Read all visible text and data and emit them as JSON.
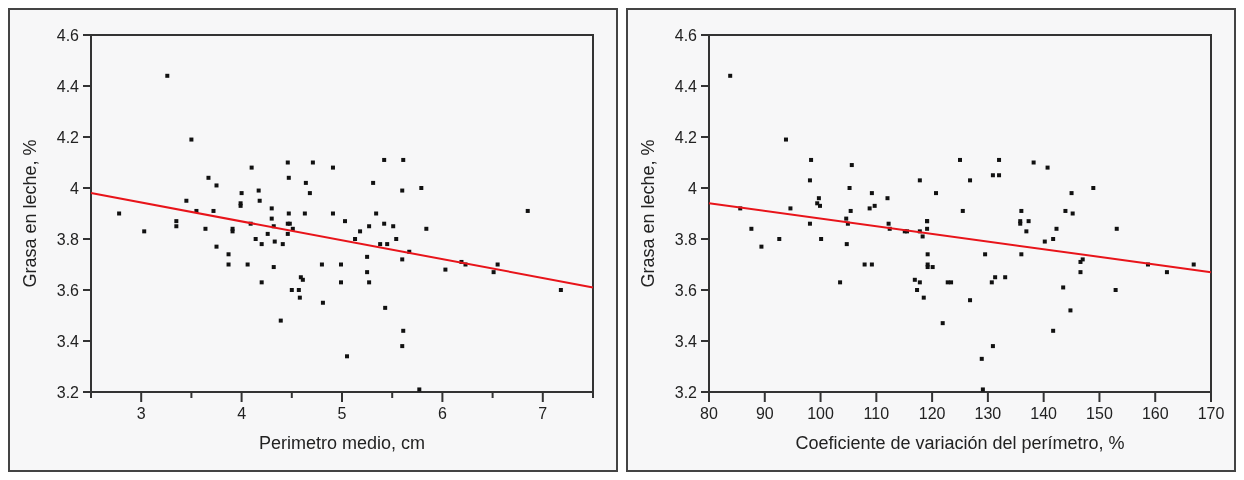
{
  "chart_data": [
    {
      "type": "scatter",
      "xlabel": "Perimetro medio, cm",
      "ylabel": "Grasa en leche, %",
      "xlim": [
        2.5,
        7.5
      ],
      "ylim": [
        3.2,
        4.6
      ],
      "xticks": [
        {
          "value": 2.5,
          "label": null
        },
        3,
        {
          "value": 3.5,
          "label": null
        },
        4,
        {
          "value": 4.5,
          "label": null
        },
        5,
        {
          "value": 5.5,
          "label": null
        },
        6,
        {
          "value": 6.5,
          "label": null
        },
        7,
        {
          "value": 7.5,
          "label": null
        }
      ],
      "yticks": [
        3.2,
        3.4,
        3.6,
        3.8,
        4,
        4.2,
        4.4,
        4.6
      ],
      "grid": false,
      "marker": "square",
      "series": [
        {
          "color": "#111111",
          "x": [
            2.78,
            3.03,
            3.26,
            3.5,
            3.45,
            3.35,
            3.35,
            3.55,
            3.67,
            3.75,
            3.64,
            3.72,
            3.75,
            3.87,
            3.87,
            3.91,
            3.91,
            3.99,
            4.0,
            3.99,
            4.06,
            4.09,
            4.1,
            4.17,
            4.18,
            4.14,
            4.2,
            4.2,
            4.26,
            4.3,
            4.3,
            4.32,
            4.33,
            4.32,
            4.39,
            4.41,
            4.5,
            4.46,
            4.46,
            4.47,
            4.46,
            4.47,
            4.51,
            4.48,
            4.57,
            4.59,
            4.61,
            4.58,
            4.64,
            4.68,
            4.63,
            4.71,
            4.81,
            4.8,
            4.91,
            4.91,
            4.99,
            4.99,
            5.03,
            5.05,
            5.13,
            5.18,
            5.25,
            5.25,
            5.27,
            5.27,
            5.31,
            5.34,
            5.38,
            5.42,
            5.43,
            5.42,
            5.45,
            5.51,
            5.54,
            5.6,
            5.61,
            5.6,
            5.61,
            5.6,
            5.67,
            5.77,
            5.79,
            5.84,
            6.03,
            6.19,
            6.23,
            6.51,
            6.55,
            6.85,
            7.18
          ],
          "values": [
            3.9,
            3.83,
            4.44,
            4.19,
            3.95,
            3.85,
            3.87,
            3.91,
            4.04,
            4.01,
            3.84,
            3.91,
            3.77,
            3.74,
            3.7,
            3.84,
            3.83,
            3.93,
            3.98,
            3.94,
            3.7,
            3.86,
            4.08,
            3.99,
            3.95,
            3.8,
            3.78,
            3.63,
            3.82,
            3.88,
            3.92,
            3.85,
            3.79,
            3.69,
            3.48,
            3.78,
            3.6,
            3.82,
            3.86,
            3.9,
            4.1,
            4.04,
            3.84,
            3.86,
            3.6,
            3.65,
            3.64,
            3.57,
            4.02,
            3.98,
            3.9,
            4.1,
            3.55,
            3.7,
            3.9,
            4.08,
            3.7,
            3.63,
            3.87,
            3.34,
            3.8,
            3.83,
            3.67,
            3.73,
            3.63,
            3.85,
            4.02,
            3.9,
            3.78,
            3.86,
            3.53,
            4.11,
            3.78,
            3.85,
            3.8,
            3.99,
            4.11,
            3.72,
            3.44,
            3.38,
            3.75,
            3.21,
            4.0,
            3.84,
            3.68,
            3.71,
            3.7,
            3.67,
            3.7,
            3.91,
            3.6
          ]
        },
        {
          "type": "line",
          "color": "#e8141a",
          "marker": "none",
          "line_style": "solid",
          "x": [
            2.5,
            7.5
          ],
          "values": [
            3.98,
            3.61
          ]
        }
      ]
    },
    {
      "type": "scatter",
      "xlabel": "Coeficiente de variación del perímetro, %",
      "ylabel": "Grasa en leche, %",
      "xlim": [
        80,
        170
      ],
      "ylim": [
        3.2,
        4.6
      ],
      "xticks": [
        80,
        90,
        100,
        110,
        120,
        130,
        140,
        150,
        160,
        170
      ],
      "yticks": [
        3.2,
        3.4,
        3.6,
        3.8,
        4,
        4.2,
        4.4,
        4.6
      ],
      "grid": false,
      "marker": "square",
      "series": [
        {
          "color": "#111111",
          "x": [
            83.8,
            85.6,
            87.6,
            89.4,
            92.6,
            93.8,
            94.6,
            98.3,
            98.1,
            98.1,
            99.4,
            99.7,
            99.9,
            100.1,
            103.5,
            104.6,
            104.9,
            104.7,
            105.2,
            105.6,
            105.4,
            107.9,
            108.8,
            109.2,
            109.2,
            109.7,
            112.0,
            112.2,
            112.4,
            115.1,
            115.5,
            116.9,
            117.3,
            117.8,
            117.8,
            118.5,
            117.8,
            118.3,
            119.1,
            119.1,
            119.1,
            119.2,
            119.2,
            119.2,
            120.1,
            120.7,
            121.9,
            122.8,
            123.4,
            125.0,
            125.5,
            126.8,
            126.8,
            128.9,
            129.1,
            129.5,
            130.9,
            130.7,
            131.3,
            130.9,
            132.0,
            132.0,
            133.1,
            135.8,
            136.0,
            135.8,
            136.0,
            136.9,
            137.3,
            138.2,
            140.2,
            140.7,
            141.7,
            142.3,
            141.7,
            143.5,
            143.9,
            144.8,
            145.0,
            145.2,
            146.6,
            146.6,
            147.0,
            148.9,
            152.9,
            153.1,
            158.7,
            162.1,
            166.9
          ],
          "values": [
            4.44,
            3.92,
            3.84,
            3.77,
            3.8,
            4.19,
            3.92,
            4.11,
            4.03,
            3.86,
            3.94,
            3.96,
            3.93,
            3.8,
            3.63,
            3.88,
            3.86,
            3.78,
            4.0,
            4.09,
            3.91,
            3.7,
            3.92,
            3.7,
            3.98,
            3.93,
            3.96,
            3.86,
            3.84,
            3.83,
            3.83,
            3.64,
            3.6,
            4.03,
            3.63,
            3.57,
            3.83,
            3.81,
            3.87,
            3.87,
            3.84,
            3.74,
            3.7,
            3.69,
            3.69,
            3.98,
            3.47,
            3.63,
            3.63,
            4.11,
            3.91,
            4.03,
            3.56,
            3.33,
            3.21,
            3.74,
            3.38,
            3.63,
            3.65,
            4.05,
            4.05,
            4.11,
            3.65,
            3.87,
            3.91,
            3.86,
            3.74,
            3.83,
            3.87,
            4.1,
            3.79,
            4.08,
            3.8,
            3.84,
            3.44,
            3.61,
            3.91,
            3.52,
            3.98,
            3.9,
            3.67,
            3.71,
            3.72,
            4.0,
            3.6,
            3.84,
            3.7,
            3.67,
            3.7
          ]
        },
        {
          "type": "line",
          "color": "#e8141a",
          "marker": "none",
          "line_style": "solid",
          "x": [
            80,
            170
          ],
          "values": [
            3.94,
            3.67
          ]
        }
      ]
    }
  ]
}
